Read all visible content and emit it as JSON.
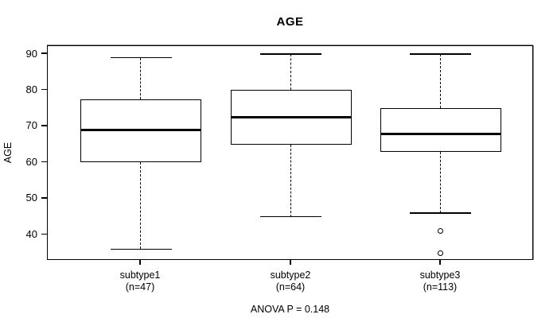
{
  "colors": {
    "foreground": "#000000",
    "background": "#ffffff",
    "frame_shadow": "#8f8f8f"
  },
  "chart_data": {
    "type": "boxplot",
    "title": "AGE",
    "xlabel": "",
    "ylabel": "AGE",
    "ylim": [
      32.8,
      92.2
    ],
    "yticks": [
      40,
      50,
      60,
      70,
      80,
      90
    ],
    "grid": false,
    "annotation": "ANOVA P = 0.148",
    "groups": [
      {
        "label": "subtype1",
        "sublabel": "(n=47)",
        "n": 47,
        "whisker_low": 36,
        "q1": 60,
        "median": 69,
        "q3": 77.5,
        "whisker_high": 89,
        "outliers": []
      },
      {
        "label": "subtype2",
        "sublabel": "(n=64)",
        "n": 64,
        "whisker_low": 45,
        "q1": 65,
        "median": 72.5,
        "q3": 80,
        "whisker_high": 90,
        "outliers": []
      },
      {
        "label": "subtype3",
        "sublabel": "(n=113)",
        "n": 113,
        "whisker_low": 46,
        "q1": 63,
        "median": 68,
        "q3": 75,
        "whisker_high": 90,
        "outliers": [
          41,
          35
        ]
      }
    ]
  }
}
